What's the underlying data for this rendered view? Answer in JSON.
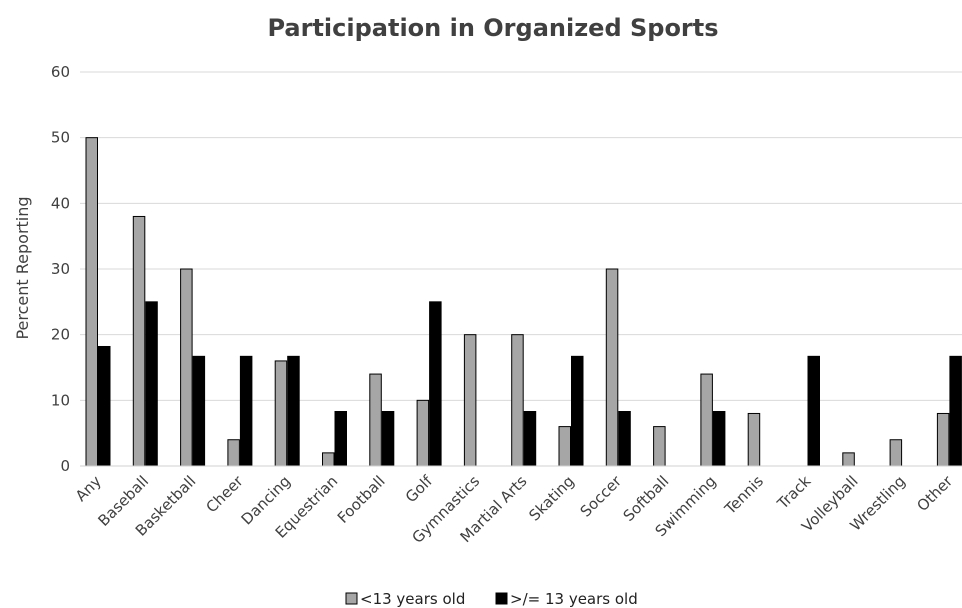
{
  "chart_data": {
    "type": "bar",
    "title": "Participation in Organized Sports",
    "xlabel": "",
    "ylabel": "Percent Reporting",
    "ylim": [
      0,
      60
    ],
    "yticks": [
      0,
      10,
      20,
      30,
      40,
      50,
      60
    ],
    "grid": true,
    "legend_position": "bottom",
    "categories": [
      "Any",
      "Baseball",
      "Basketball",
      "Cheer",
      "Dancing",
      "Equestrian",
      "Football",
      "Golf",
      "Gymnastics",
      "Martial Arts",
      "Skating",
      "Soccer",
      "Softball",
      "Swimming",
      "Tennis",
      "Track",
      "Volleyball",
      "Wrestling",
      "Other"
    ],
    "series": [
      {
        "name": "<13 years old",
        "color": "#a6a6a6",
        "values": [
          50,
          38,
          30,
          4,
          16,
          2,
          14,
          10,
          20,
          20,
          6,
          30,
          6,
          14,
          8,
          0,
          2,
          4,
          8
        ]
      },
      {
        "name": ">/= 13 years old",
        "color": "#000000",
        "values": [
          18.2,
          25,
          16.7,
          16.7,
          16.7,
          8.3,
          8.3,
          25,
          0,
          8.3,
          16.7,
          8.3,
          0,
          8.3,
          0,
          16.7,
          0,
          0,
          16.7
        ]
      }
    ]
  }
}
